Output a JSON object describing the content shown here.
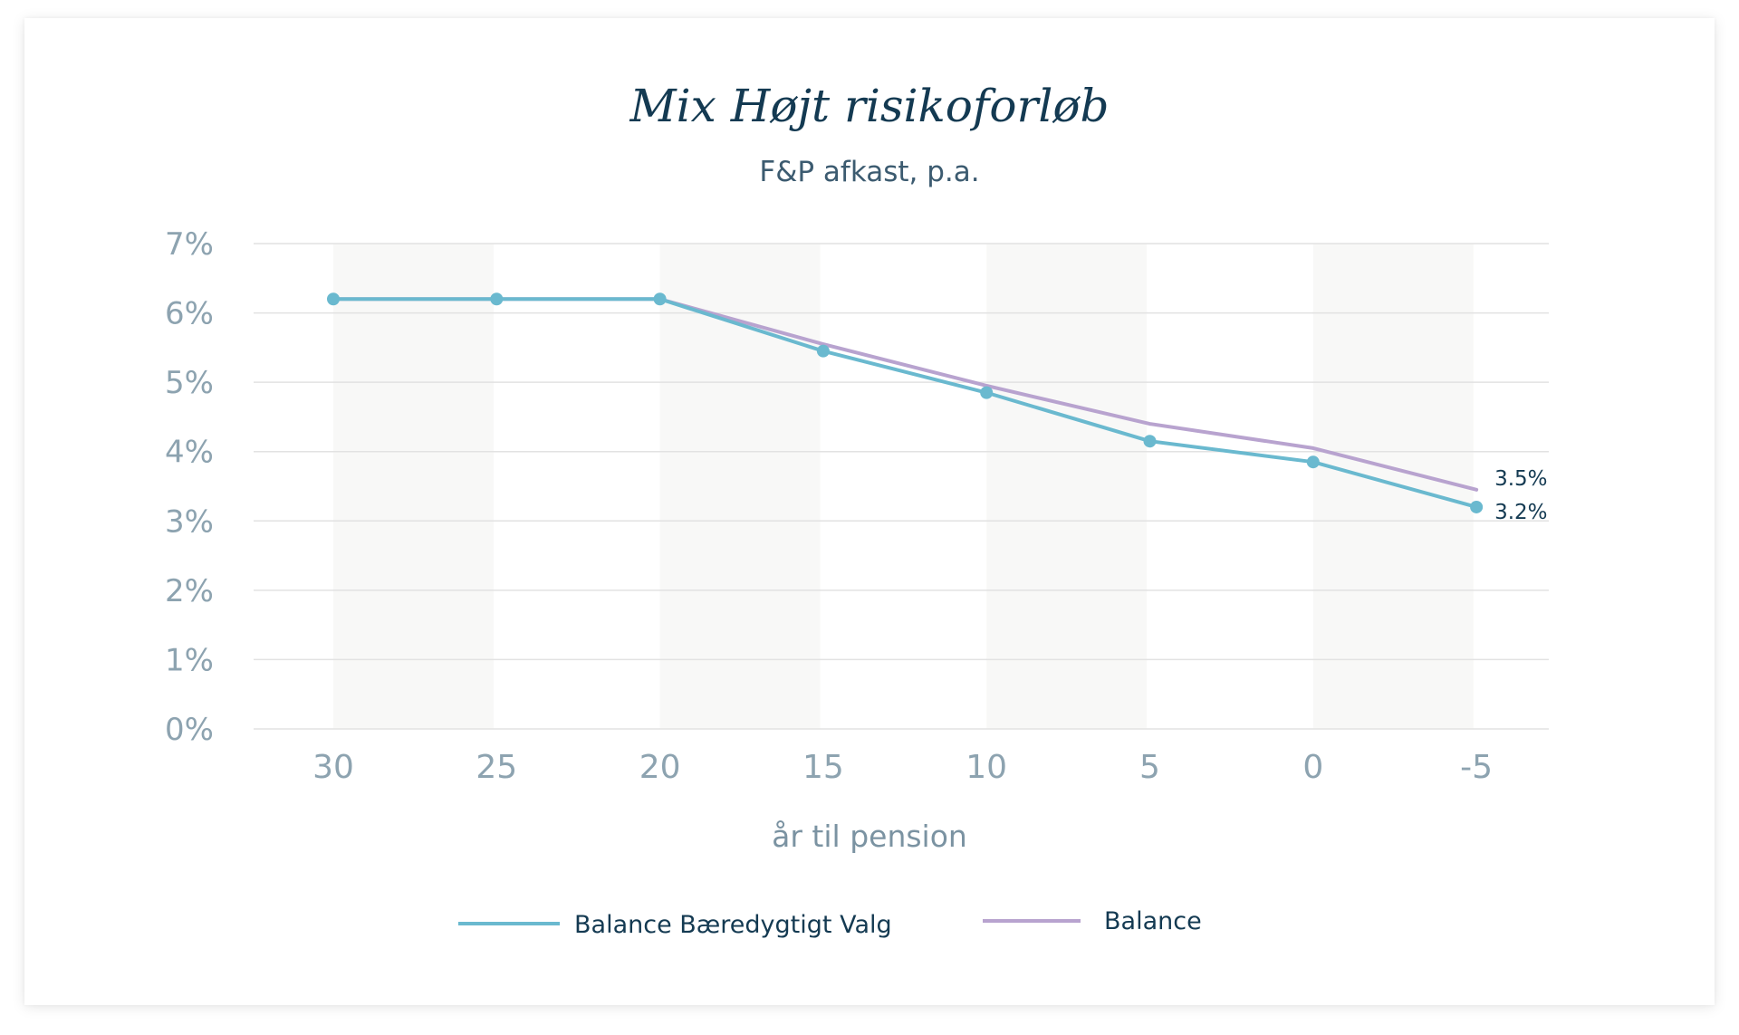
{
  "chart_data": {
    "type": "line",
    "title": "Mix Højt risikoforløb",
    "subtitle": "F&P afkast, p.a.",
    "xlabel": "år til pension",
    "ylabel": "",
    "categories": [
      "30",
      "25",
      "20",
      "15",
      "10",
      "5",
      "0",
      "-5"
    ],
    "y_ticks": [
      "0%",
      "1%",
      "2%",
      "3%",
      "4%",
      "5%",
      "6%",
      "7%"
    ],
    "ylim": [
      0,
      7
    ],
    "grid": true,
    "legend": "bottom-center",
    "series": [
      {
        "name": "Balance Bæredygtigt Valg",
        "color": "#6ab9cf",
        "markers": true,
        "values": [
          6.2,
          6.2,
          6.2,
          5.45,
          4.85,
          4.15,
          3.85,
          3.2
        ],
        "end_label": "3.2%"
      },
      {
        "name": "Balance",
        "color": "#b8a3cf",
        "markers": false,
        "values": [
          6.2,
          6.2,
          6.2,
          5.55,
          4.95,
          4.4,
          4.05,
          3.45
        ],
        "end_label": "3.5%"
      }
    ]
  }
}
